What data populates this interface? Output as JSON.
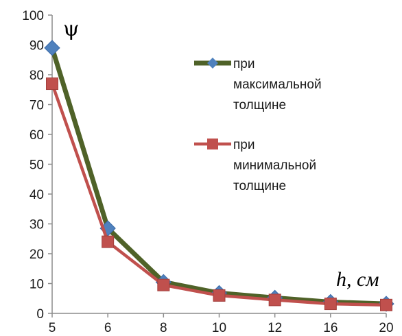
{
  "chart_data": {
    "type": "line",
    "categories": [
      "5",
      "6",
      "8",
      "10",
      "12",
      "16",
      "20"
    ],
    "series": [
      {
        "name_lines": [
          "при",
          "максимальной",
          "толщине"
        ],
        "values": [
          89,
          28.5,
          10.5,
          6.8,
          5.2,
          3.8,
          3.2
        ],
        "color": "#4f6228",
        "marker": "diamond",
        "marker_color": "#4f81bd"
      },
      {
        "name_lines": [
          "при",
          "минимальной",
          "толщине"
        ],
        "values": [
          77,
          24,
          9.5,
          6,
          4.5,
          3.2,
          2.8
        ],
        "color": "#c0504d",
        "marker": "square",
        "marker_color": "#c0504d"
      }
    ],
    "ylabel": "ψ",
    "xlabel": "h, см",
    "ylim": [
      0,
      100
    ],
    "yticks": [
      "0",
      "10",
      "20",
      "30",
      "40",
      "50",
      "60",
      "70",
      "80",
      "90",
      "100"
    ],
    "grid": false,
    "legend_position": "right"
  }
}
